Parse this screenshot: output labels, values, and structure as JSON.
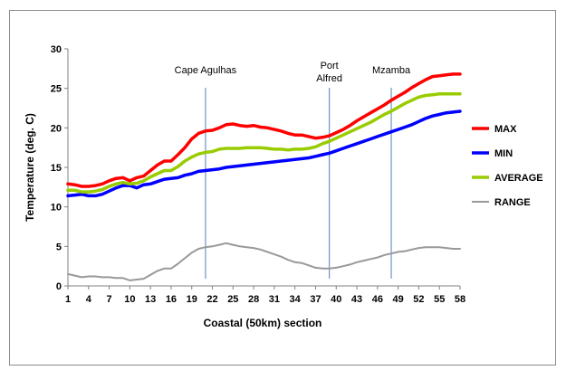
{
  "chart_data": {
    "type": "line",
    "title": "",
    "xlabel": "Coastal (50km) section",
    "ylabel": "Temperature (deg. C)",
    "xlim": [
      1,
      58
    ],
    "ylim": [
      0,
      30
    ],
    "x_ticks": [
      1,
      4,
      7,
      10,
      13,
      16,
      19,
      22,
      25,
      28,
      31,
      34,
      37,
      40,
      43,
      46,
      49,
      52,
      55,
      58
    ],
    "y_ticks": [
      0,
      5,
      10,
      15,
      20,
      25,
      30
    ],
    "grid": false,
    "legend_position": "right",
    "annotations": [
      {
        "label": "Cape Agulhas",
        "x": 21
      },
      {
        "label_lines": [
          "Port",
          "Alfred"
        ],
        "x": 39
      },
      {
        "label": "Mzamba",
        "x": 48
      }
    ],
    "series": [
      {
        "name": "MAX",
        "color": "#ff0000",
        "values": [
          12.9,
          12.8,
          12.6,
          12.6,
          12.7,
          12.9,
          13.3,
          13.6,
          13.7,
          13.3,
          13.7,
          13.9,
          14.6,
          15.3,
          15.8,
          15.8,
          16.6,
          17.5,
          18.6,
          19.3,
          19.6,
          19.7,
          20.0,
          20.4,
          20.5,
          20.3,
          20.2,
          20.3,
          20.1,
          20.0,
          19.8,
          19.6,
          19.3,
          19.1,
          19.1,
          18.9,
          18.7,
          18.8,
          19.0,
          19.4,
          19.8,
          20.3,
          20.9,
          21.4,
          21.9,
          22.4,
          22.9,
          23.5,
          24.0,
          24.5,
          25.1,
          25.6,
          26.1,
          26.5,
          26.6,
          26.7,
          26.8,
          26.8
        ]
      },
      {
        "name": "MIN",
        "color": "#0000ff",
        "values": [
          11.4,
          11.5,
          11.6,
          11.4,
          11.4,
          11.6,
          12.0,
          12.4,
          12.7,
          12.7,
          12.4,
          12.8,
          12.9,
          13.2,
          13.5,
          13.6,
          13.7,
          14.0,
          14.2,
          14.5,
          14.6,
          14.7,
          14.8,
          15.0,
          15.1,
          15.2,
          15.3,
          15.4,
          15.5,
          15.6,
          15.7,
          15.8,
          15.9,
          16.0,
          16.1,
          16.2,
          16.4,
          16.6,
          16.8,
          17.1,
          17.4,
          17.7,
          18.0,
          18.3,
          18.6,
          18.9,
          19.2,
          19.5,
          19.8,
          20.1,
          20.4,
          20.8,
          21.2,
          21.5,
          21.7,
          21.9,
          22.0,
          22.1
        ]
      },
      {
        "name": "AVERAGE",
        "color": "#99cc00",
        "values": [
          12.1,
          12.1,
          11.9,
          11.9,
          12.0,
          12.2,
          12.6,
          12.9,
          13.1,
          12.9,
          13.0,
          13.3,
          13.8,
          14.2,
          14.6,
          14.6,
          15.1,
          15.8,
          16.3,
          16.7,
          16.9,
          17.0,
          17.3,
          17.4,
          17.4,
          17.4,
          17.5,
          17.5,
          17.5,
          17.4,
          17.3,
          17.3,
          17.2,
          17.3,
          17.3,
          17.4,
          17.6,
          18.0,
          18.3,
          18.7,
          19.1,
          19.5,
          19.9,
          20.3,
          20.7,
          21.2,
          21.7,
          22.1,
          22.6,
          23.1,
          23.5,
          23.9,
          24.1,
          24.2,
          24.3,
          24.3,
          24.3,
          24.3
        ]
      },
      {
        "name": "RANGE",
        "color": "#999999",
        "values": [
          1.5,
          1.3,
          1.1,
          1.2,
          1.2,
          1.1,
          1.1,
          1.0,
          1.0,
          0.7,
          0.8,
          0.9,
          1.4,
          1.9,
          2.2,
          2.2,
          2.8,
          3.5,
          4.2,
          4.7,
          4.9,
          5.0,
          5.2,
          5.4,
          5.2,
          5.0,
          4.9,
          4.8,
          4.6,
          4.3,
          4.0,
          3.7,
          3.3,
          3.0,
          2.9,
          2.6,
          2.3,
          2.2,
          2.2,
          2.3,
          2.5,
          2.7,
          3.0,
          3.2,
          3.4,
          3.6,
          3.9,
          4.1,
          4.3,
          4.4,
          4.6,
          4.8,
          4.9,
          4.9,
          4.9,
          4.8,
          4.7,
          4.7
        ]
      }
    ]
  }
}
